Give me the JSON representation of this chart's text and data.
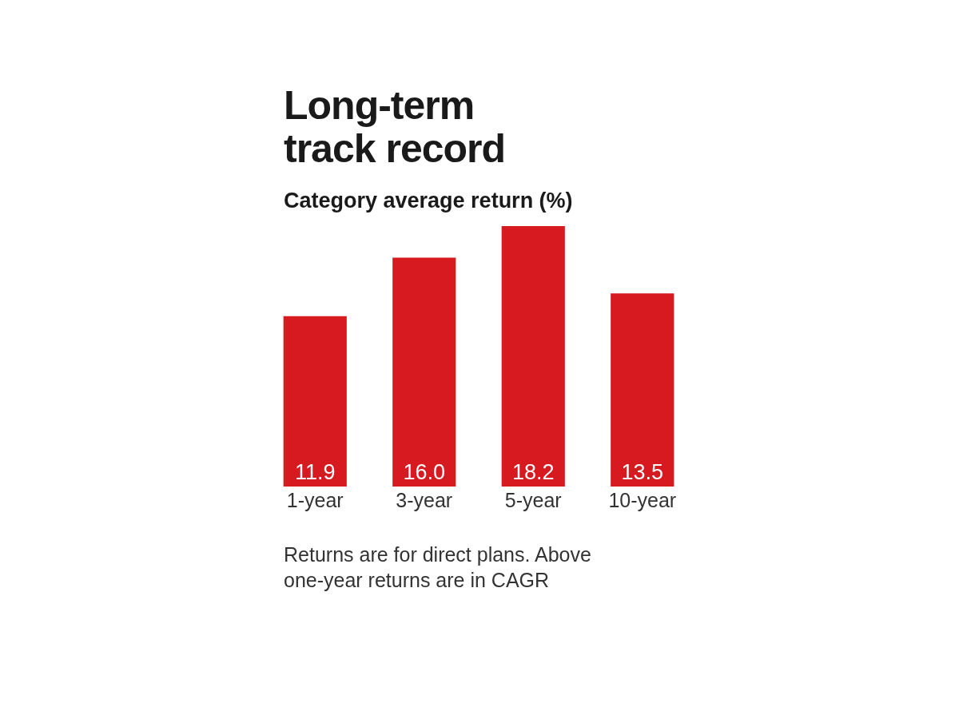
{
  "chart_data": {
    "type": "bar",
    "title": "Long-term track record",
    "subtitle": "Category average return (%)",
    "categories": [
      "1-year",
      "3-year",
      "5-year",
      "10-year"
    ],
    "values": [
      11.9,
      16.0,
      18.2,
      13.5
    ],
    "value_labels": [
      "11.9",
      "16.0",
      "18.2",
      "13.5"
    ],
    "color": "#d71920",
    "grid": false,
    "legend": false,
    "annotations": [
      "Returns are for direct plans. Above one-year returns are in CAGR"
    ]
  }
}
